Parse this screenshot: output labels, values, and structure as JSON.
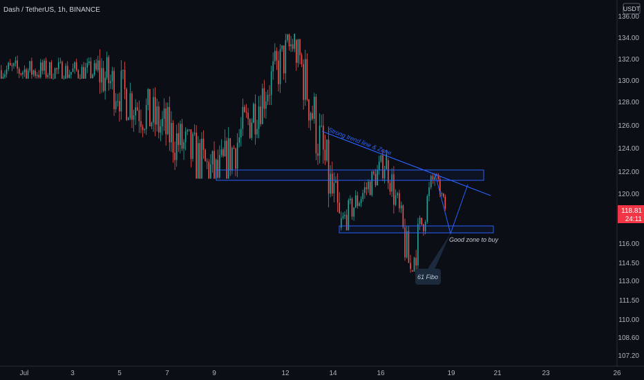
{
  "header": {
    "symbol_text": "Dash / TetherUS, 1h, BINANCE"
  },
  "currency_badge": "USDT",
  "price_tag": {
    "price": "118.81",
    "countdown": "24:11",
    "color": "#f23645"
  },
  "colors": {
    "up": "#26a69a",
    "down": "#ef5350",
    "annotation": "#2962ff",
    "background": "#0c0e15",
    "callout_bg": "#1c2a3e"
  },
  "annotations": {
    "trendline_label": "Strong trend line & Zone",
    "zone_label": "Good zone to buy",
    "fibo_label": "61 Fibo"
  },
  "chart_data": {
    "type": "candlestick",
    "y_ticks": [
      "136.00",
      "134.00",
      "132.00",
      "130.00",
      "128.00",
      "126.00",
      "124.00",
      "122.00",
      "120.00",
      "118.00",
      "116.00",
      "114.50",
      "113.00",
      "111.50",
      "110.00",
      "108.60",
      "107.20"
    ],
    "ylim": [
      106.9,
      136.5
    ],
    "x_ticks": [
      "Jul",
      "3",
      "5",
      "7",
      "9",
      "12",
      "14",
      "16",
      "19",
      "21",
      "23",
      "26"
    ],
    "last_price": 118.81,
    "series": [
      {
        "segment": "early-July range",
        "start": 131.0,
        "end": 130.8,
        "high": 136.5,
        "low": 130.2
      },
      {
        "segment": "drop into Jul 9",
        "start": 131.0,
        "end": 121.5,
        "high": 134.6,
        "low": 121.4
      },
      {
        "segment": "rebound into Jul 12",
        "start": 121.5,
        "end": 133.8,
        "high": 134.4,
        "low": 121.4
      },
      {
        "segment": "decline into Jul 14",
        "start": 133.8,
        "end": 117.2,
        "high": 133.9,
        "low": 117.0
      },
      {
        "segment": "range Jul 14-16",
        "start": 117.2,
        "end": 123.0,
        "high": 123.9,
        "low": 117.0
      },
      {
        "segment": "drop to 61 Fibo",
        "start": 123.0,
        "end": 113.9,
        "high": 123.2,
        "low": 113.7
      },
      {
        "segment": "rally to trendline",
        "start": 113.9,
        "end": 121.8,
        "high": 122.2,
        "low": 113.8
      },
      {
        "segment": "pullback",
        "start": 121.8,
        "end": 118.81,
        "high": 121.9,
        "low": 118.5
      }
    ],
    "zones": [
      {
        "name": "resistance zone",
        "from": "Jul 9",
        "to": "Jul 20",
        "low": 121.2,
        "high": 122.2
      },
      {
        "name": "buy zone",
        "from": "Jul 14",
        "to": "Jul 21",
        "low": 117.2,
        "high": 117.8
      }
    ],
    "trendline": {
      "from": [
        "Jul 13",
        125.3
      ],
      "to": [
        "Jul 21",
        119.9
      ]
    }
  }
}
